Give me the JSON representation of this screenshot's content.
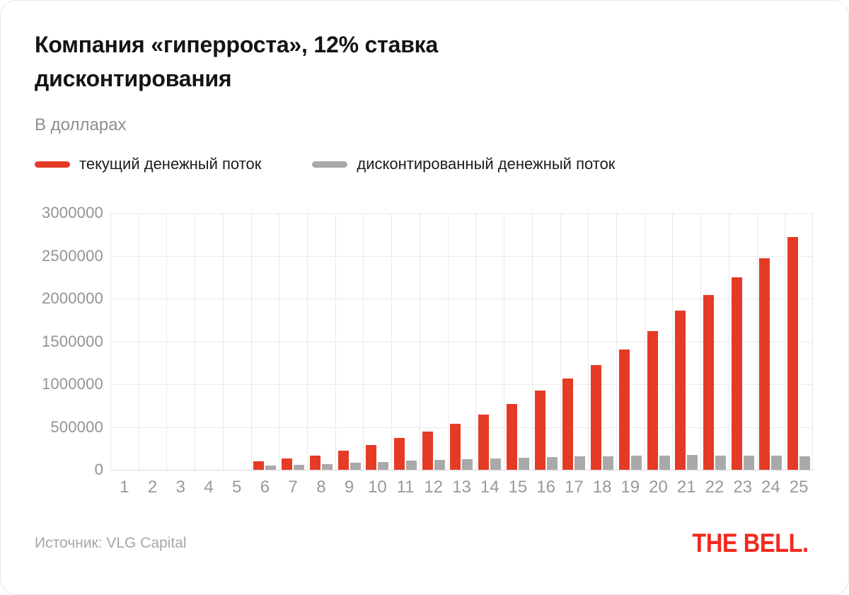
{
  "header": {
    "title": "Компания «гиперроста», 12% ставка дисконтирования",
    "subtitle": "В долларах"
  },
  "legend": {
    "items": [
      {
        "id": "current",
        "label": "текущий денежный поток",
        "color": "#e53b26"
      },
      {
        "id": "discounted",
        "label": "дисконтированный денежный поток",
        "color": "#a9a9a9"
      }
    ]
  },
  "footer": {
    "source": "Источник: VLG Capital",
    "logo": "THE BELL."
  },
  "colors": {
    "bar_current": "#e53b26",
    "bar_discounted": "#a9a9a9",
    "grid": "#e9e9e9",
    "axis": "#d8d8d8",
    "tick_text": "#999999",
    "logo_red": "#f2291f"
  },
  "chart_data": {
    "type": "bar",
    "title": "Компания «гиперроста», 12% ставка дисконтирования",
    "units_label": "В долларах",
    "categories": [
      1,
      2,
      3,
      4,
      5,
      6,
      7,
      8,
      9,
      10,
      11,
      12,
      13,
      14,
      15,
      16,
      17,
      18,
      19,
      20,
      21,
      22,
      23,
      24,
      25
    ],
    "series": [
      {
        "name": "текущий денежный поток",
        "color": "#e53b26",
        "values": [
          0,
          0,
          0,
          0,
          0,
          100000,
          130000,
          169000,
          219700,
          285610,
          371293,
          445552,
          534662,
          641594,
          769913,
          923896,
          1062480,
          1221852,
          1405130,
          1615900,
          1858285,
          2044113,
          2248524,
          2473377,
          2720714
        ]
      },
      {
        "name": "дисконтированный денежный поток",
        "color": "#a9a9a9",
        "values": [
          0,
          0,
          0,
          0,
          0,
          50660,
          58800,
          68260,
          79230,
          91960,
          106740,
          114360,
          122530,
          131280,
          140660,
          150710,
          154750,
          158900,
          163150,
          167520,
          172000,
          168930,
          165920,
          162960,
          160040
        ]
      }
    ],
    "ylim": [
      0,
      3000000
    ],
    "ytick_step": 500000,
    "ytick_labels": [
      "3000000",
      "2500000",
      "2000000",
      "1500000",
      "1000000",
      "500000",
      "0"
    ],
    "grid": "both",
    "legend_position": "top-left",
    "source": "Источник: VLG Capital"
  }
}
